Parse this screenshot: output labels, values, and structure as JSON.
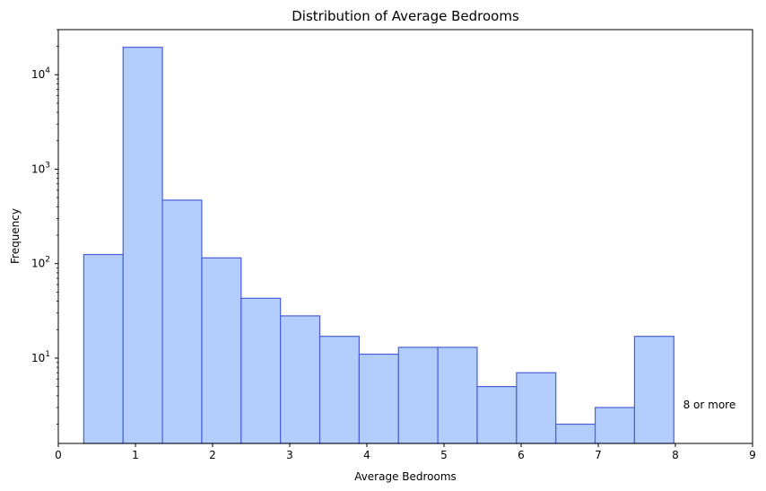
{
  "chart_data": {
    "type": "bar",
    "title": "Distribution of Average Bedrooms",
    "xlabel": "Average Bedrooms",
    "ylabel": "Frequency",
    "x_scale": "linear",
    "y_scale": "log",
    "xlim": [
      0,
      9
    ],
    "ylim": [
      1.25,
      30000
    ],
    "grid": false,
    "legend": "none",
    "x_ticks": [
      "0",
      "1",
      "2",
      "3",
      "4",
      "5",
      "6",
      "7",
      "8",
      "9"
    ],
    "y_ticks": [
      {
        "value": 10,
        "base": "10",
        "exp": "1"
      },
      {
        "value": 100,
        "base": "10",
        "exp": "2"
      },
      {
        "value": 1000,
        "base": "10",
        "exp": "3"
      },
      {
        "value": 10000,
        "base": "10",
        "exp": "4"
      }
    ],
    "bins": [
      {
        "start": 0.33,
        "end": 0.84,
        "count": 125
      },
      {
        "start": 0.84,
        "end": 1.35,
        "count": 19500
      },
      {
        "start": 1.35,
        "end": 1.86,
        "count": 470
      },
      {
        "start": 1.86,
        "end": 2.37,
        "count": 115
      },
      {
        "start": 2.37,
        "end": 2.88,
        "count": 43
      },
      {
        "start": 2.88,
        "end": 3.39,
        "count": 28
      },
      {
        "start": 3.39,
        "end": 3.9,
        "count": 17
      },
      {
        "start": 3.9,
        "end": 4.41,
        "count": 11
      },
      {
        "start": 4.41,
        "end": 4.92,
        "count": 13
      },
      {
        "start": 4.92,
        "end": 5.43,
        "count": 13
      },
      {
        "start": 5.43,
        "end": 5.94,
        "count": 5
      },
      {
        "start": 5.94,
        "end": 6.45,
        "count": 7
      },
      {
        "start": 6.45,
        "end": 6.96,
        "count": 2
      },
      {
        "start": 6.96,
        "end": 7.47,
        "count": 3
      },
      {
        "start": 7.47,
        "end": 7.98,
        "count": 17
      }
    ],
    "annotation": {
      "text": "8 or more",
      "x": 8.1,
      "y": 3.2
    },
    "colors": {
      "fill": "#b3cdfc",
      "edge": "#4a5fd6",
      "axis": "#000000"
    }
  }
}
